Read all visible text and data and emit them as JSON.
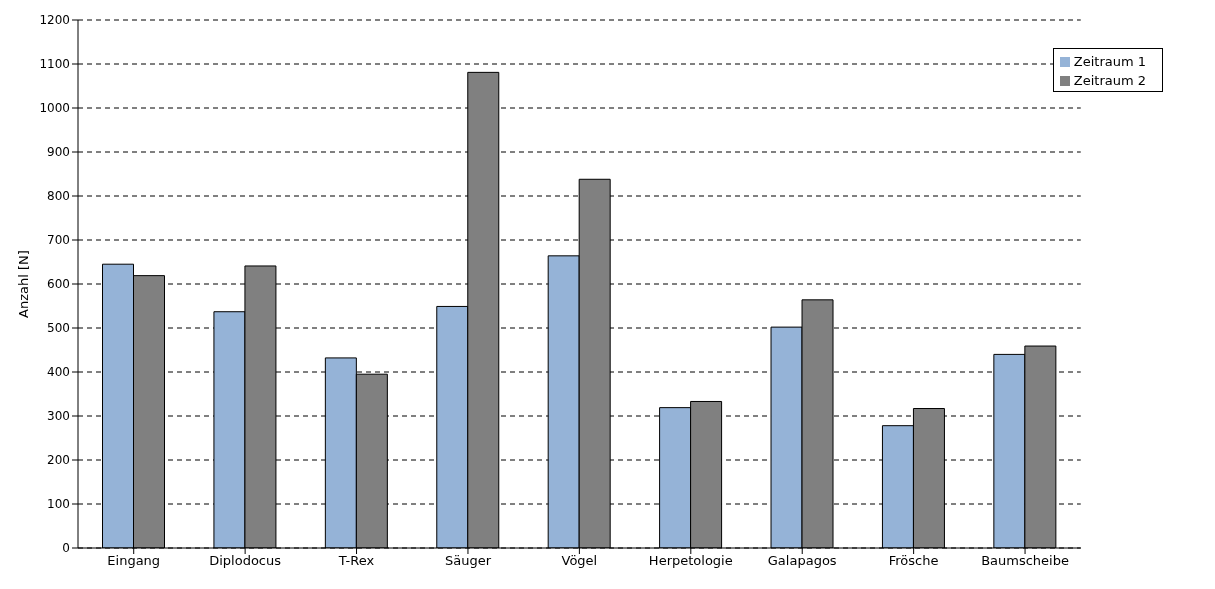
{
  "chart_data": {
    "type": "bar",
    "ylabel": "Anzahl [N]",
    "categories": [
      "Eingang",
      "Diplodocus",
      "T-Rex",
      "Säuger",
      "Vögel",
      "Herpetologie",
      "Galapagos",
      "Frösche",
      "Baumscheibe"
    ],
    "series": [
      {
        "name": "Zeitraum 1",
        "color": "#95b3d7",
        "values": [
          645,
          537,
          432,
          549,
          664,
          319,
          502,
          278,
          440
        ]
      },
      {
        "name": "Zeitraum 2",
        "color": "#808080",
        "values": [
          619,
          641,
          395,
          1081,
          838,
          333,
          564,
          317,
          459
        ]
      }
    ],
    "ylim": [
      0,
      1200
    ],
    "yticks": [
      0,
      100,
      200,
      300,
      400,
      500,
      600,
      700,
      800,
      900,
      1000,
      1100,
      1200
    ],
    "grid": "y",
    "legend": "top right"
  }
}
